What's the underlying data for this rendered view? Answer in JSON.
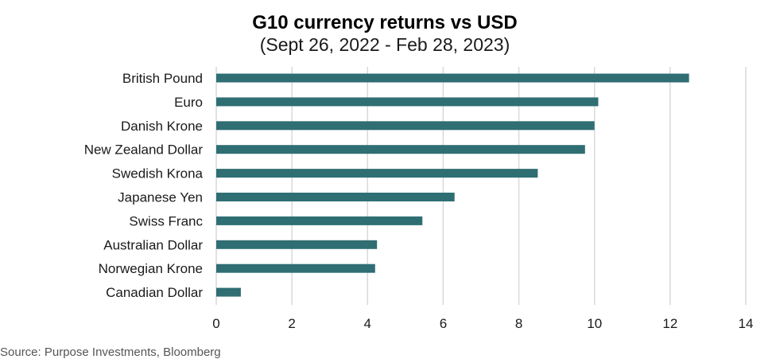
{
  "chart_data": {
    "type": "bar",
    "orientation": "horizontal",
    "title": "G10 currency returns vs USD",
    "subtitle": "(Sept 26, 2022 - Feb 28, 2023)",
    "categories": [
      "British Pound",
      "Euro",
      "Danish Krone",
      "New Zealand Dollar",
      "Swedish Krona",
      "Japanese Yen",
      "Swiss Franc",
      "Australian Dollar",
      "Norwegian Krone",
      "Canadian Dollar"
    ],
    "values": [
      12.5,
      10.1,
      10.0,
      9.75,
      8.5,
      6.3,
      5.45,
      4.25,
      4.2,
      0.65
    ],
    "xlim": [
      0,
      14
    ],
    "xticks": [
      0,
      2,
      4,
      6,
      8,
      10,
      12,
      14
    ],
    "grid": true,
    "bar_color": "#2f6e73",
    "source": "Source: Purpose Investments, Bloomberg"
  }
}
